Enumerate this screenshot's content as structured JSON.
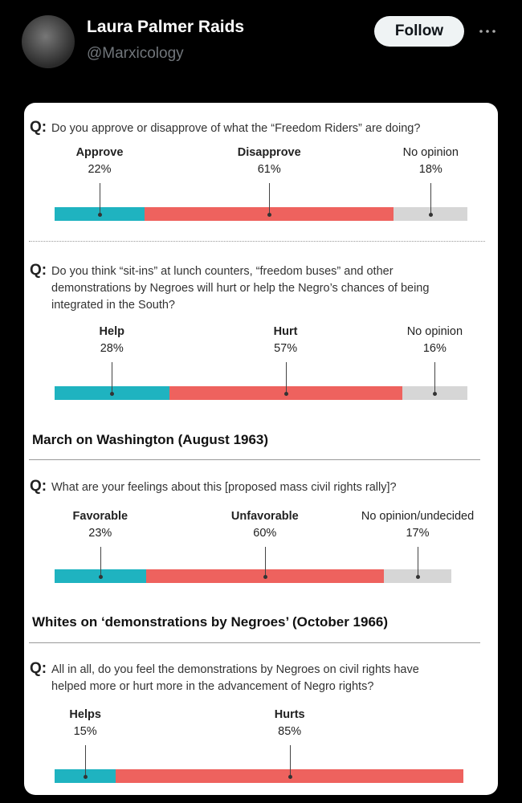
{
  "header": {
    "name": "Laura Palmer Raids",
    "handle": "@Marxicology",
    "follow": "Follow"
  },
  "q_marker": "Q:",
  "polls": [
    {
      "question": "Do you approve or disapprove of what the “Freedom Riders” are doing?",
      "categories": [
        "Approve",
        "Disapprove",
        "No opinion"
      ],
      "values": [
        22,
        61,
        18
      ],
      "value_labels": [
        "22%",
        "61%",
        "18%"
      ]
    },
    {
      "question": "Do you think “sit-ins” at lunch counters, “freedom buses” and other demonstrations by Negroes will hurt or help the Negro’s chances of being integrated in the South?",
      "categories": [
        "Help",
        "Hurt",
        "No opinion"
      ],
      "values": [
        28,
        57,
        16
      ],
      "value_labels": [
        "28%",
        "57%",
        "16%"
      ]
    },
    {
      "heading": "March on Washington (August 1963)",
      "question": "What are your feelings about this [proposed mass civil rights rally]?",
      "categories": [
        "Favorable",
        "Unfavorable",
        "No opinion/undecided"
      ],
      "values": [
        23,
        60,
        17
      ],
      "value_labels": [
        "23%",
        "60%",
        "17%"
      ]
    },
    {
      "heading": "Whites on ‘demonstrations by Negroes’ (October 1966)",
      "question": "All in all, do you feel the demonstrations by Negroes on civil rights have helped more or hurt more in the advancement of Negro rights?",
      "categories": [
        "Helps",
        "Hurts"
      ],
      "values": [
        15,
        85
      ],
      "value_labels": [
        "15%",
        "85%"
      ]
    }
  ],
  "colors": [
    "#1fb3c0",
    "#ee625e",
    "#d6d6d6"
  ]
}
